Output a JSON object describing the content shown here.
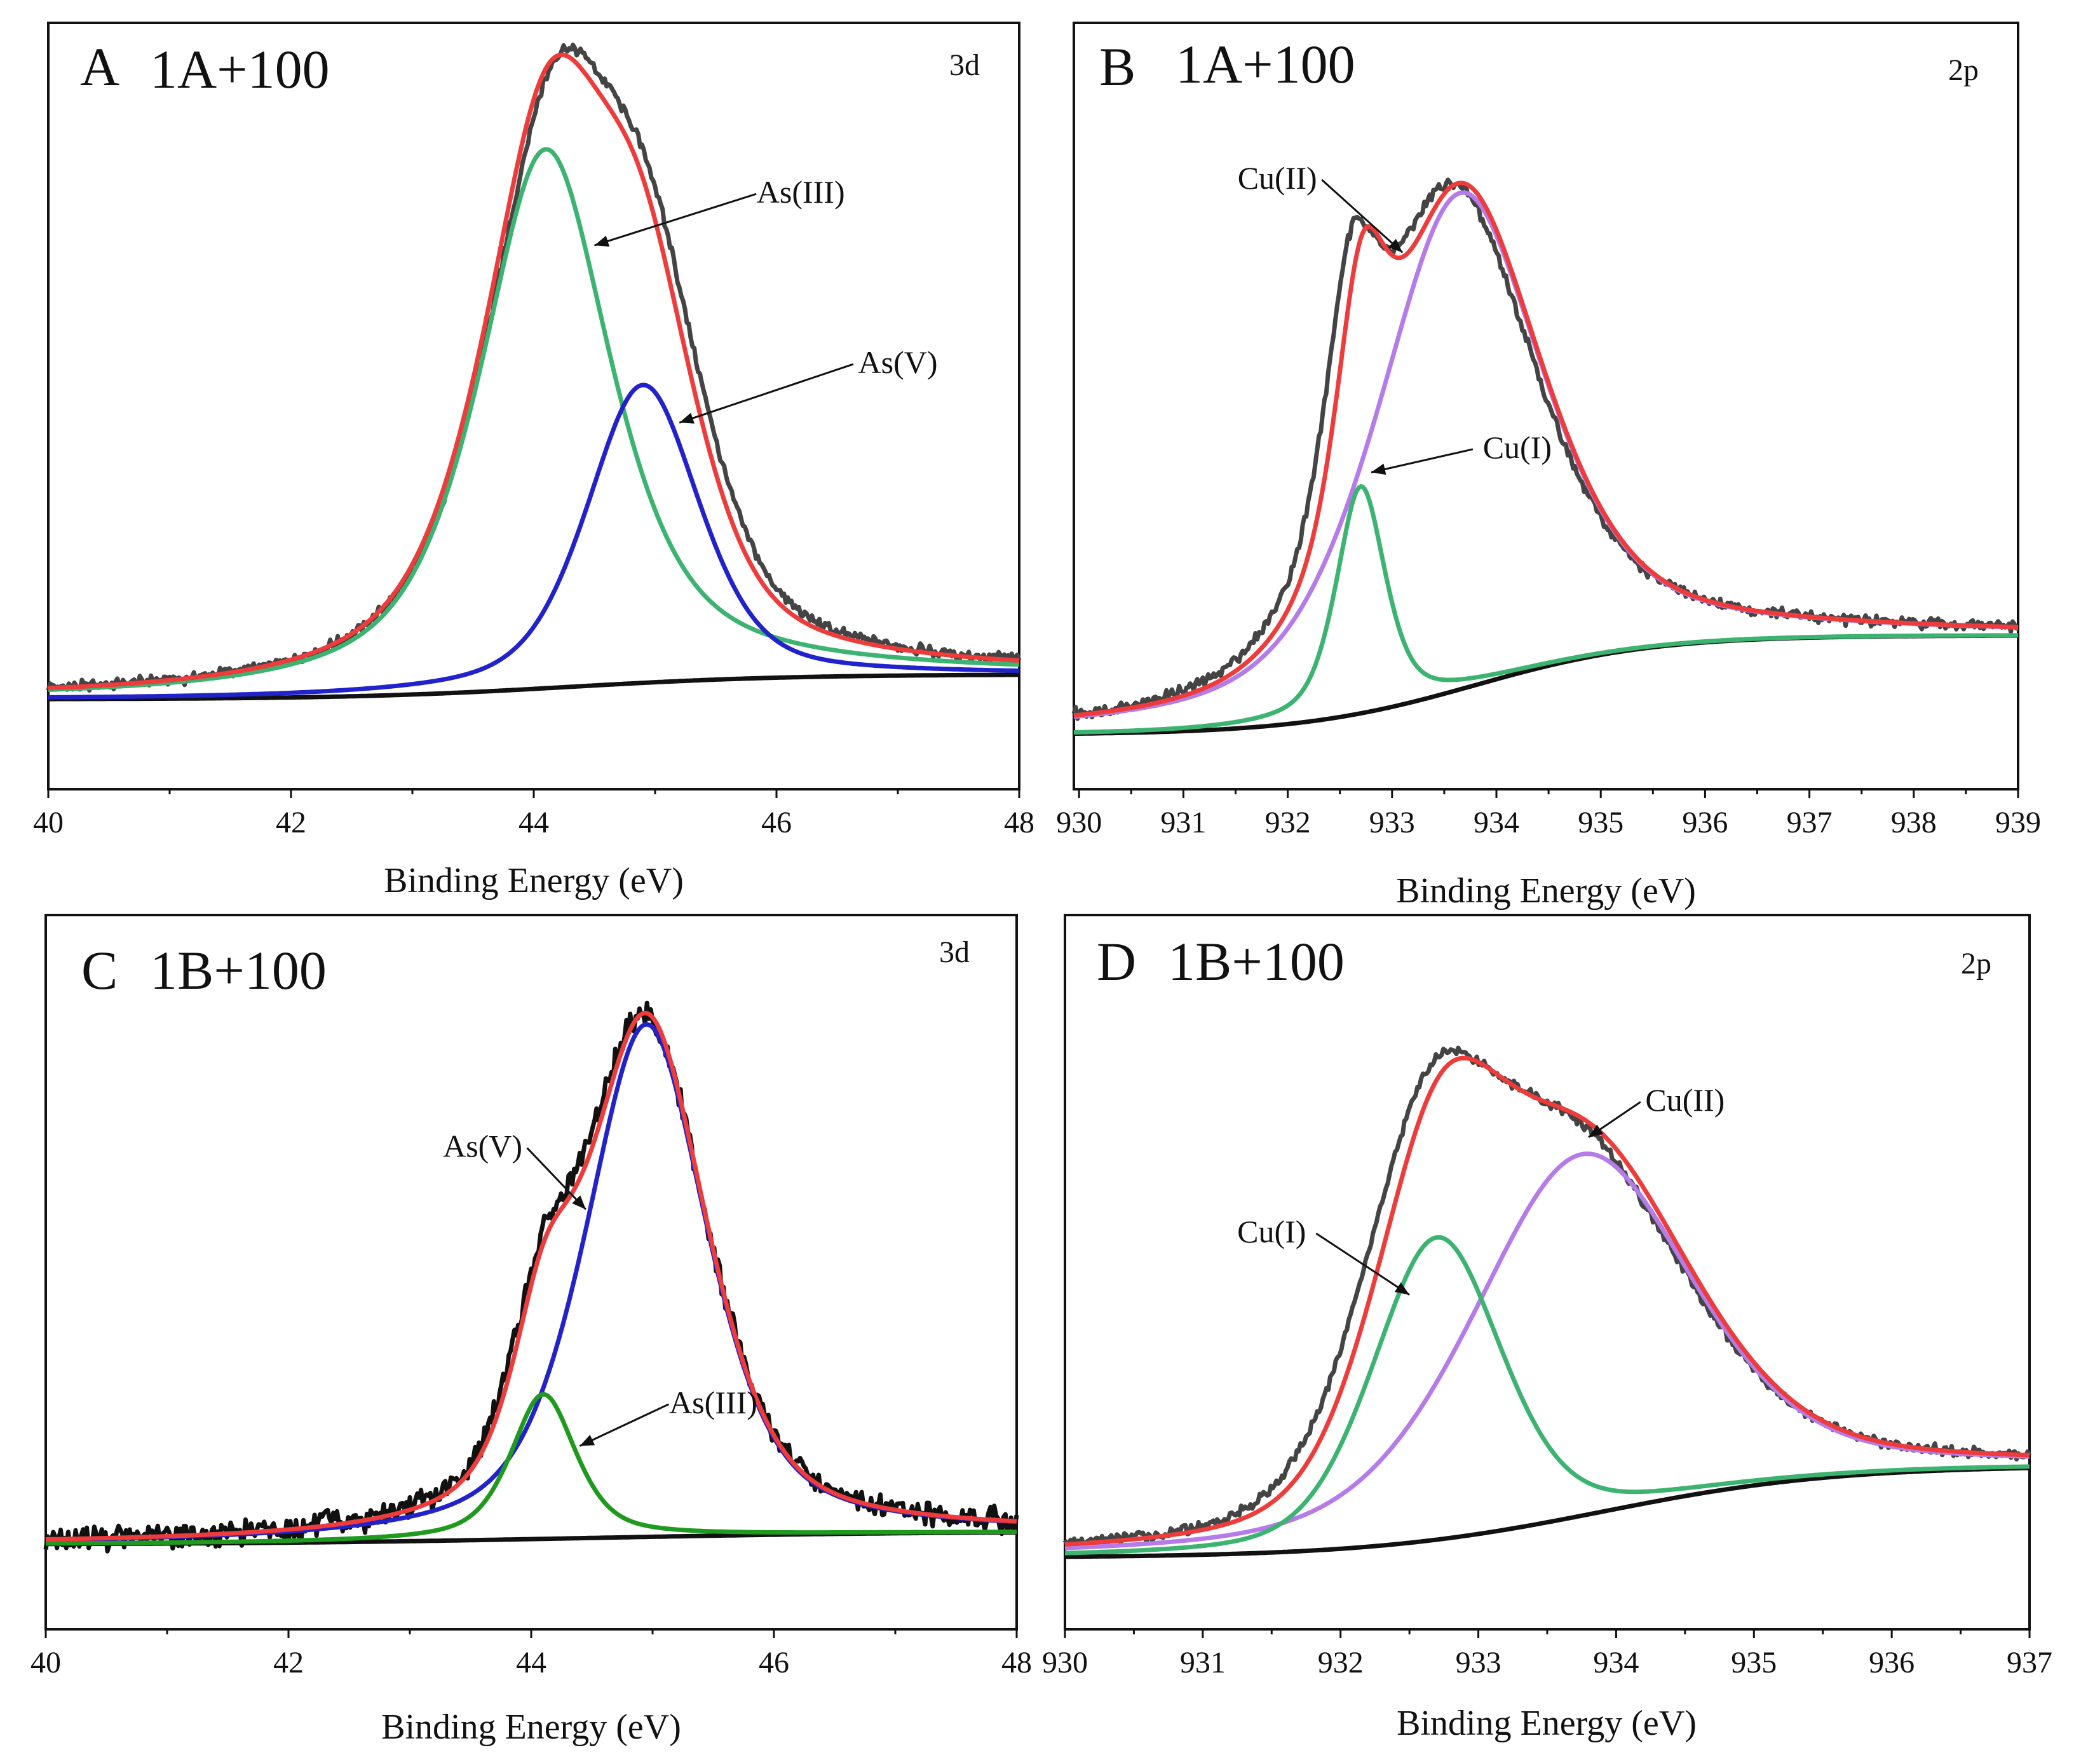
{
  "colors": {
    "data": "#444444",
    "data_dark": "#111111",
    "envelope": "#ee3b3b",
    "green": "#3cb371",
    "green_dark": "#1f9a1f",
    "blue": "#2222cc",
    "purple": "#b57be8",
    "background": "#111111"
  },
  "chart_data": [
    {
      "type": "line",
      "panel_letter": "A",
      "title": "1A+100",
      "orbital_label": "3d",
      "xlabel": "Binding Energy (eV)",
      "ylabel": "",
      "xlim": [
        40,
        48
      ],
      "ylim": [
        0,
        1
      ],
      "ticks": [
        "40",
        "42",
        "44",
        "46",
        "48"
      ],
      "tick_values": [
        40,
        42,
        44,
        46,
        48
      ],
      "background": {
        "name": "background",
        "start": 0.1,
        "end": 0.135,
        "center": 44.3,
        "width": 0.9
      },
      "components": [
        {
          "name": "As(III)",
          "color_key": "green",
          "center": 44.1,
          "height": 0.76,
          "width": 0.65,
          "eta": 0.7
        },
        {
          "name": "As(V)",
          "color_key": "blue",
          "center": 44.9,
          "height": 0.42,
          "width": 0.55,
          "eta": 0.45
        }
      ],
      "measured_color_key": "data",
      "measured_noise": 0.006,
      "measured_shift": 0.2,
      "annotations": [
        {
          "text": "As(III)",
          "x": 46.2,
          "y": 0.8,
          "arrow_to": [
            44.5,
            0.74
          ]
        },
        {
          "text": "As(V)",
          "x": 47.0,
          "y": 0.56,
          "arrow_to": [
            45.2,
            0.49
          ]
        }
      ]
    },
    {
      "type": "line",
      "panel_letter": "B",
      "title": "1A+100",
      "orbital_label": "2p",
      "xlabel": "Binding Energy (eV)",
      "ylabel": "",
      "xlim": [
        929.95,
        939
      ],
      "ylim": [
        0,
        1
      ],
      "ticks": [
        "930",
        "931",
        "932",
        "933",
        "934",
        "935",
        "936",
        "937",
        "938",
        "939"
      ],
      "tick_values": [
        930,
        931,
        932,
        933,
        934,
        935,
        936,
        937,
        938,
        939
      ],
      "background": {
        "name": "background",
        "start": 0.05,
        "end": 0.19,
        "center": 933.8,
        "width": 0.85
      },
      "components": [
        {
          "name": "Cu(II)",
          "color_key": "purple",
          "center": 933.65,
          "height": 0.7,
          "width": 0.95,
          "eta": 0.55
        },
        {
          "name": "Cu(I)",
          "color_key": "green",
          "center": 932.7,
          "height": 0.32,
          "width": 0.28,
          "eta": 0.55
        }
      ],
      "measured_color_key": "data",
      "measured_noise": 0.006,
      "measured_shift": -0.35,
      "annotations": [
        {
          "text": "Cu(II)",
          "x": 931.9,
          "y": 0.82,
          "arrow_to": [
            933.1,
            0.73
          ]
        },
        {
          "text": "Cu(I)",
          "x": 934.2,
          "y": 0.44,
          "arrow_to": [
            932.8,
            0.42
          ]
        }
      ]
    },
    {
      "type": "line",
      "panel_letter": "C",
      "title": "1B+100",
      "orbital_label": "3d",
      "xlabel": "Binding Energy (eV)",
      "ylabel": "",
      "xlim": [
        40,
        48
      ],
      "ylim": [
        0,
        1
      ],
      "ticks": [
        "40",
        "42",
        "44",
        "46",
        "48"
      ],
      "tick_values": [
        40,
        42,
        44,
        46,
        48
      ],
      "background": {
        "name": "background",
        "start": 0.1,
        "end": 0.12,
        "center": 44.5,
        "width": 1.4
      },
      "components": [
        {
          "name": "As(V)",
          "color_key": "blue",
          "center": 44.95,
          "height": 0.78,
          "width": 0.6,
          "eta": 0.55
        },
        {
          "name": "As(III)",
          "color_key": "green_dark",
          "center": 44.1,
          "height": 0.22,
          "width": 0.32,
          "eta": 0.6
        }
      ],
      "measured_color_key": "data_dark",
      "measured_noise": 0.014,
      "measured_shift": -0.05,
      "annotations": [
        {
          "text": "As(V)",
          "x": 43.6,
          "y": 0.69,
          "arrow_to": [
            44.45,
            0.61
          ]
        },
        {
          "text": "As(III)",
          "x": 45.5,
          "y": 0.3,
          "arrow_to": [
            44.4,
            0.25
          ]
        }
      ]
    },
    {
      "type": "line",
      "panel_letter": "D",
      "title": "1B+100",
      "orbital_label": "2p",
      "xlabel": "Binding Energy (eV)",
      "ylabel": "",
      "xlim": [
        930,
        937
      ],
      "ylim": [
        0,
        1
      ],
      "ticks": [
        "930",
        "931",
        "932",
        "933",
        "934",
        "935",
        "936",
        "937"
      ],
      "tick_values": [
        930,
        931,
        932,
        933,
        934,
        935,
        936,
        937
      ],
      "background": {
        "name": "background",
        "start": 0.08,
        "end": 0.22,
        "center": 933.9,
        "width": 0.85
      },
      "components": [
        {
          "name": "Cu(II)",
          "color_key": "purple",
          "center": 933.75,
          "height": 0.55,
          "width": 0.95,
          "eta": 0.4
        },
        {
          "name": "Cu(I)",
          "color_key": "green",
          "center": 932.7,
          "height": 0.46,
          "width": 0.55,
          "eta": 0.3
        }
      ],
      "measured_color_key": "data",
      "measured_noise": 0.006,
      "measured_shift": -0.3,
      "annotations": [
        {
          "text": "Cu(II)",
          "x": 934.5,
          "y": 0.76,
          "arrow_to": [
            933.8,
            0.72
          ]
        },
        {
          "text": "Cu(I)",
          "x": 931.5,
          "y": 0.56,
          "arrow_to": [
            932.5,
            0.48
          ]
        }
      ]
    }
  ]
}
